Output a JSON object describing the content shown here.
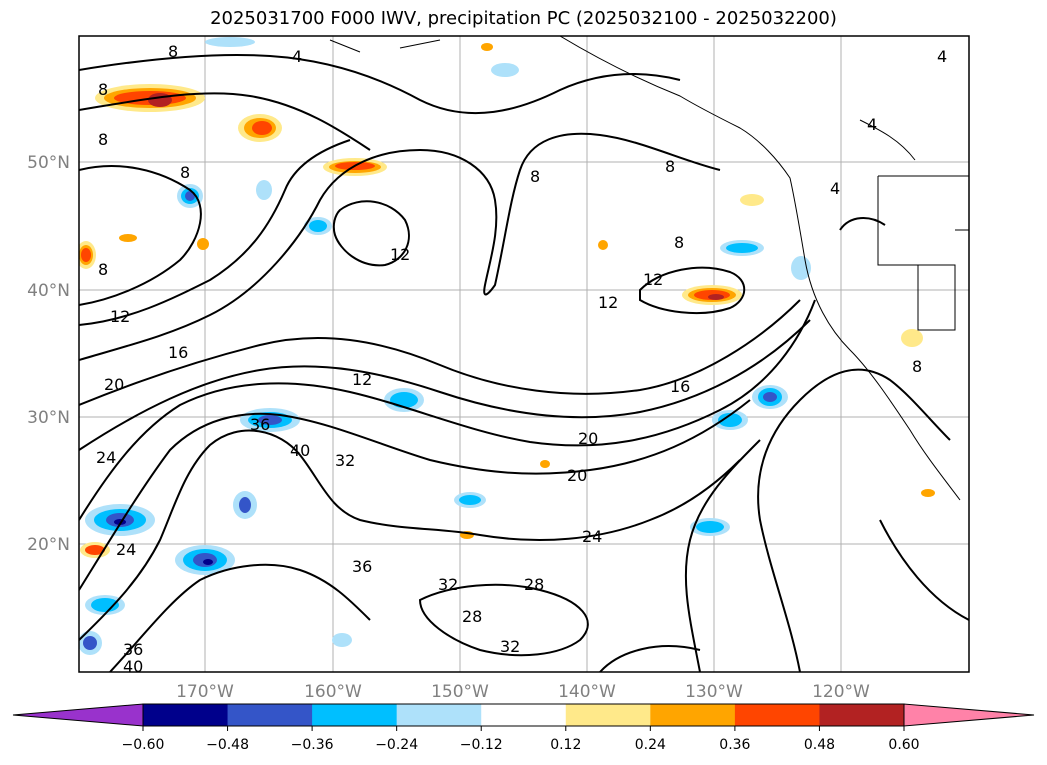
{
  "title": "2025031700 F000 IWV, precipitation PC (2025032100 - 2025032200)",
  "longitude_labels": [
    "170°W",
    "160°W",
    "150°W",
    "140°W",
    "130°W",
    "120°W"
  ],
  "latitude_labels": [
    "50°N",
    "40°N",
    "30°N",
    "20°N"
  ],
  "contour_labels": [
    "8",
    "8",
    "8",
    "8",
    "8",
    "8",
    "8",
    "4",
    "4",
    "4",
    "4",
    "12",
    "12",
    "12",
    "12",
    "12",
    "16",
    "16",
    "20",
    "20",
    "20",
    "24",
    "24",
    "24",
    "28",
    "28",
    "32",
    "32",
    "32",
    "36",
    "36",
    "36",
    "40",
    "40",
    "8",
    "8"
  ],
  "colorbar": {
    "tick_labels": [
      "−0.60",
      "−0.48",
      "−0.36",
      "−0.24",
      "−0.12",
      "0.12",
      "0.24",
      "0.36",
      "0.48",
      "0.60"
    ],
    "colors": [
      "#9932cc",
      "#00008b",
      "#3455c8",
      "#00bfff",
      "#aee1fa",
      "#ffffff",
      "#ffe98a",
      "#ffa500",
      "#ff4500",
      "#b22222",
      "#ff82a8"
    ]
  },
  "colors": {
    "contour": "#000000",
    "grid": "#aaaaaa",
    "tick_text": "#808080"
  }
}
